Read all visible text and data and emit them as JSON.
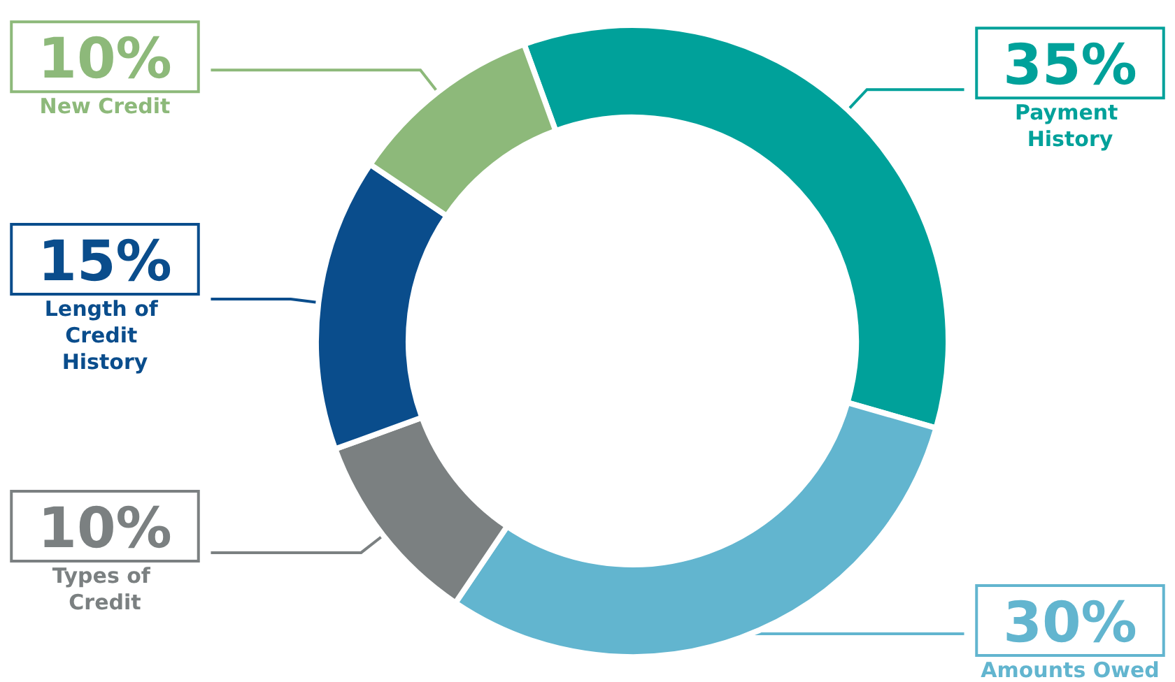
{
  "chart_data": {
    "type": "donut",
    "categories": [
      "Payment History",
      "Amounts Owed",
      "Types of Credit",
      "Length of Credit History",
      "New Credit"
    ],
    "values": [
      35,
      30,
      10,
      15,
      10
    ],
    "colors": [
      "#00a19a",
      "#62b5cf",
      "#7b8081",
      "#0a4d8c",
      "#8db97a"
    ],
    "value_labels": [
      "35%",
      "30%",
      "10%",
      "15%",
      "10%"
    ],
    "legend": false
  }
}
